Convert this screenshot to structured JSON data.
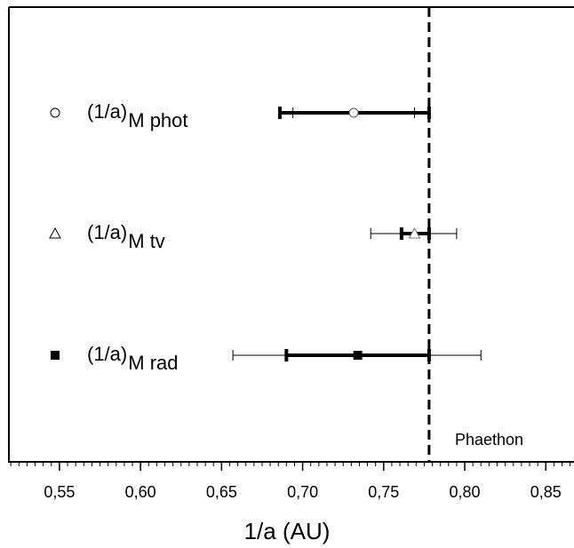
{
  "chart_data": {
    "type": "errorbar",
    "xlabel": "1/a (AU)",
    "xlim": [
      0.5188,
      0.8674
    ],
    "xticks": [
      {
        "value": 0.55,
        "label": "0,55"
      },
      {
        "value": 0.6,
        "label": "0,60"
      },
      {
        "value": 0.65,
        "label": "0,65"
      },
      {
        "value": 0.7,
        "label": "0,70"
      },
      {
        "value": 0.75,
        "label": "0,75"
      },
      {
        "value": 0.8,
        "label": "0,80"
      },
      {
        "value": 0.85,
        "label": "0,85"
      }
    ],
    "x_minor_tick_step": 0.005,
    "reference": {
      "label": "Phaethon",
      "value": 0.778
    },
    "series": [
      {
        "name": "(1/a)",
        "subscript": "M phot",
        "marker": "circle",
        "value": 0.7315,
        "thick_range": [
          0.686,
          0.778
        ],
        "thin_range": [
          0.694,
          0.769
        ]
      },
      {
        "name": "(1/a)",
        "subscript": "M tv",
        "marker": "triangle",
        "value": 0.769,
        "thick_range": [
          0.761,
          0.778
        ],
        "thin_range": [
          0.742,
          0.795
        ]
      },
      {
        "name": "(1/a)",
        "subscript": "M rad",
        "marker": "square",
        "value": 0.734,
        "thick_range": [
          0.69,
          0.778
        ],
        "thin_range": [
          0.657,
          0.81
        ]
      }
    ]
  }
}
